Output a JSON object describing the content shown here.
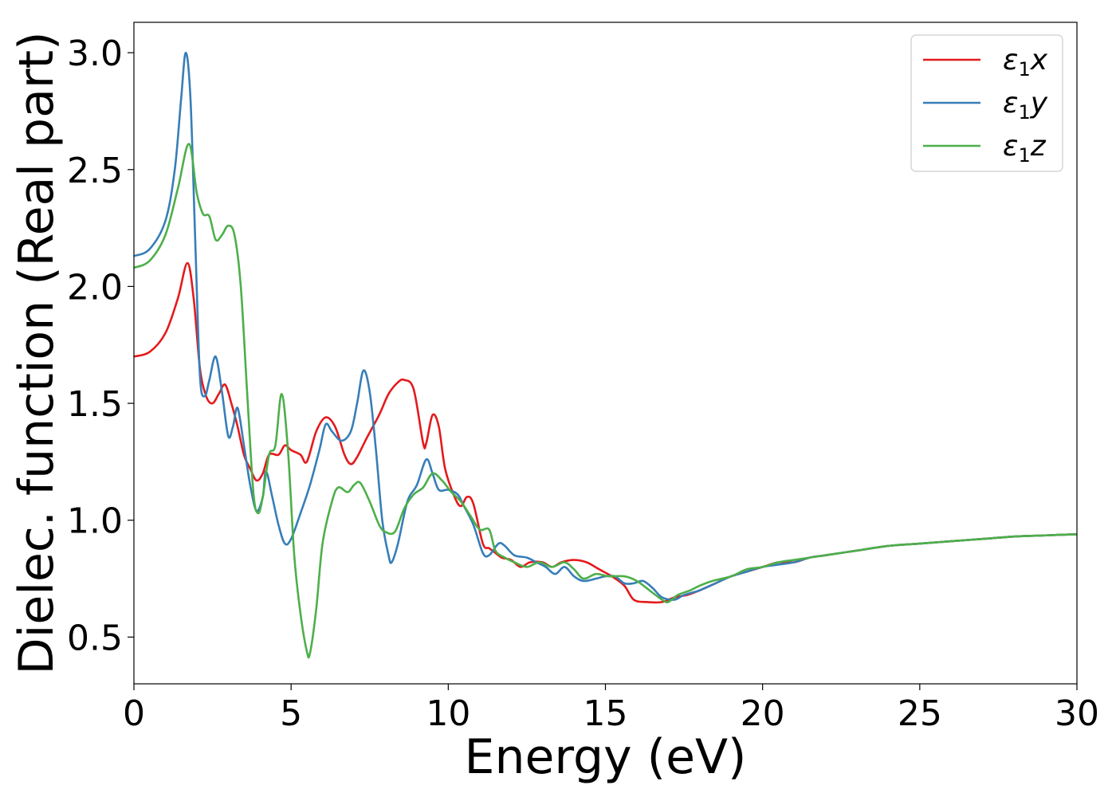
{
  "chart_data": {
    "type": "line",
    "title": "",
    "xlabel": "Energy (eV)",
    "ylabel": "Dielec. function (Real part)",
    "xlim": [
      0,
      30
    ],
    "ylim": [
      0.3,
      3.13
    ],
    "xticks": [
      0,
      5,
      10,
      15,
      20,
      25,
      30
    ],
    "yticks": [
      0.5,
      1.0,
      1.5,
      2.0,
      2.5,
      3.0
    ],
    "grid": false,
    "legend_position": "top-right",
    "series": [
      {
        "name": "ε1x",
        "legend_main": "ε",
        "legend_sub": "1",
        "legend_tail": "x",
        "color": "#e41a1c",
        "points": [
          [
            0,
            1.7
          ],
          [
            0.5,
            1.72
          ],
          [
            1.0,
            1.8
          ],
          [
            1.4,
            1.95
          ],
          [
            1.7,
            2.1
          ],
          [
            1.9,
            1.95
          ],
          [
            2.1,
            1.65
          ],
          [
            2.3,
            1.53
          ],
          [
            2.5,
            1.5
          ],
          [
            2.7,
            1.54
          ],
          [
            2.9,
            1.58
          ],
          [
            3.1,
            1.5
          ],
          [
            3.3,
            1.4
          ],
          [
            3.5,
            1.28
          ],
          [
            3.7,
            1.22
          ],
          [
            3.9,
            1.17
          ],
          [
            4.1,
            1.2
          ],
          [
            4.3,
            1.28
          ],
          [
            4.6,
            1.28
          ],
          [
            4.8,
            1.32
          ],
          [
            5.0,
            1.3
          ],
          [
            5.3,
            1.28
          ],
          [
            5.5,
            1.25
          ],
          [
            5.8,
            1.38
          ],
          [
            6.1,
            1.44
          ],
          [
            6.4,
            1.4
          ],
          [
            6.7,
            1.28
          ],
          [
            6.9,
            1.24
          ],
          [
            7.1,
            1.27
          ],
          [
            7.4,
            1.35
          ],
          [
            7.8,
            1.45
          ],
          [
            8.1,
            1.54
          ],
          [
            8.4,
            1.59
          ],
          [
            8.6,
            1.6
          ],
          [
            8.9,
            1.56
          ],
          [
            9.2,
            1.33
          ],
          [
            9.3,
            1.33
          ],
          [
            9.5,
            1.45
          ],
          [
            9.7,
            1.4
          ],
          [
            9.9,
            1.22
          ],
          [
            10.2,
            1.1
          ],
          [
            10.4,
            1.06
          ],
          [
            10.6,
            1.1
          ],
          [
            10.8,
            1.07
          ],
          [
            11.1,
            0.9
          ],
          [
            11.3,
            0.88
          ],
          [
            11.5,
            0.86
          ],
          [
            11.7,
            0.84
          ],
          [
            12.0,
            0.83
          ],
          [
            12.3,
            0.8
          ],
          [
            12.6,
            0.82
          ],
          [
            13.0,
            0.82
          ],
          [
            13.3,
            0.8
          ],
          [
            13.6,
            0.82
          ],
          [
            14.0,
            0.83
          ],
          [
            14.4,
            0.82
          ],
          [
            14.8,
            0.79
          ],
          [
            15.2,
            0.76
          ],
          [
            15.6,
            0.72
          ],
          [
            15.9,
            0.66
          ],
          [
            16.3,
            0.65
          ],
          [
            16.8,
            0.65
          ],
          [
            17.2,
            0.67
          ],
          [
            17.6,
            0.68
          ],
          [
            18.0,
            0.7
          ],
          [
            18.5,
            0.73
          ],
          [
            19.0,
            0.76
          ],
          [
            19.5,
            0.78
          ],
          [
            20.0,
            0.8
          ],
          [
            20.5,
            0.82
          ],
          [
            21.0,
            0.82
          ],
          [
            21.5,
            0.84
          ],
          [
            22,
            0.85
          ],
          [
            23,
            0.87
          ],
          [
            24,
            0.89
          ],
          [
            25,
            0.9
          ],
          [
            26,
            0.91
          ],
          [
            27,
            0.92
          ],
          [
            28,
            0.93
          ],
          [
            29,
            0.935
          ],
          [
            30,
            0.94
          ]
        ]
      },
      {
        "name": "ε1y",
        "legend_main": "ε",
        "legend_sub": "1",
        "legend_tail": "y",
        "color": "#377eb8",
        "points": [
          [
            0,
            2.13
          ],
          [
            0.5,
            2.16
          ],
          [
            1.0,
            2.28
          ],
          [
            1.3,
            2.5
          ],
          [
            1.5,
            2.8
          ],
          [
            1.65,
            3.0
          ],
          [
            1.8,
            2.8
          ],
          [
            1.95,
            2.2
          ],
          [
            2.1,
            1.62
          ],
          [
            2.25,
            1.53
          ],
          [
            2.4,
            1.6
          ],
          [
            2.6,
            1.7
          ],
          [
            2.8,
            1.55
          ],
          [
            3.0,
            1.36
          ],
          [
            3.15,
            1.4
          ],
          [
            3.3,
            1.48
          ],
          [
            3.5,
            1.32
          ],
          [
            3.7,
            1.15
          ],
          [
            3.9,
            1.04
          ],
          [
            4.1,
            1.1
          ],
          [
            4.2,
            1.21
          ],
          [
            4.4,
            1.1
          ],
          [
            4.6,
            0.98
          ],
          [
            4.8,
            0.9
          ],
          [
            5.0,
            0.92
          ],
          [
            5.3,
            1.03
          ],
          [
            5.6,
            1.15
          ],
          [
            5.9,
            1.3
          ],
          [
            6.1,
            1.41
          ],
          [
            6.3,
            1.38
          ],
          [
            6.6,
            1.34
          ],
          [
            6.9,
            1.38
          ],
          [
            7.1,
            1.5
          ],
          [
            7.3,
            1.64
          ],
          [
            7.5,
            1.55
          ],
          [
            7.7,
            1.3
          ],
          [
            7.9,
            1.0
          ],
          [
            8.1,
            0.85
          ],
          [
            8.2,
            0.82
          ],
          [
            8.4,
            0.9
          ],
          [
            8.7,
            1.08
          ],
          [
            9.0,
            1.15
          ],
          [
            9.3,
            1.26
          ],
          [
            9.5,
            1.2
          ],
          [
            9.7,
            1.13
          ],
          [
            10.0,
            1.13
          ],
          [
            10.3,
            1.11
          ],
          [
            10.5,
            1.06
          ],
          [
            10.8,
            0.98
          ],
          [
            11.1,
            0.86
          ],
          [
            11.3,
            0.85
          ],
          [
            11.6,
            0.9
          ],
          [
            11.8,
            0.89
          ],
          [
            12.1,
            0.85
          ],
          [
            12.5,
            0.84
          ],
          [
            12.8,
            0.82
          ],
          [
            13.1,
            0.8
          ],
          [
            13.4,
            0.77
          ],
          [
            13.7,
            0.8
          ],
          [
            14.0,
            0.76
          ],
          [
            14.3,
            0.74
          ],
          [
            14.7,
            0.75
          ],
          [
            15.0,
            0.76
          ],
          [
            15.3,
            0.76
          ],
          [
            15.6,
            0.73
          ],
          [
            15.9,
            0.73
          ],
          [
            16.2,
            0.74
          ],
          [
            16.5,
            0.71
          ],
          [
            16.8,
            0.67
          ],
          [
            17.2,
            0.66
          ],
          [
            17.5,
            0.68
          ],
          [
            18.0,
            0.7
          ],
          [
            18.5,
            0.73
          ],
          [
            19.0,
            0.76
          ],
          [
            19.5,
            0.78
          ],
          [
            20.0,
            0.8
          ],
          [
            20.5,
            0.81
          ],
          [
            21.0,
            0.82
          ],
          [
            21.5,
            0.84
          ],
          [
            22,
            0.85
          ],
          [
            23,
            0.87
          ],
          [
            24,
            0.89
          ],
          [
            25,
            0.9
          ],
          [
            26,
            0.91
          ],
          [
            27,
            0.92
          ],
          [
            28,
            0.93
          ],
          [
            29,
            0.935
          ],
          [
            30,
            0.94
          ]
        ]
      },
      {
        "name": "ε1z",
        "legend_main": "ε",
        "legend_sub": "1",
        "legend_tail": "z",
        "color": "#4daf4a",
        "points": [
          [
            0,
            2.08
          ],
          [
            0.5,
            2.11
          ],
          [
            1.0,
            2.22
          ],
          [
            1.4,
            2.42
          ],
          [
            1.75,
            2.61
          ],
          [
            2.0,
            2.4
          ],
          [
            2.2,
            2.31
          ],
          [
            2.4,
            2.3
          ],
          [
            2.6,
            2.2
          ],
          [
            2.8,
            2.22
          ],
          [
            3.0,
            2.26
          ],
          [
            3.2,
            2.22
          ],
          [
            3.4,
            2.0
          ],
          [
            3.6,
            1.55
          ],
          [
            3.8,
            1.12
          ],
          [
            3.95,
            1.03
          ],
          [
            4.1,
            1.1
          ],
          [
            4.3,
            1.28
          ],
          [
            4.5,
            1.32
          ],
          [
            4.7,
            1.54
          ],
          [
            4.9,
            1.3
          ],
          [
            5.1,
            0.85
          ],
          [
            5.3,
            0.6
          ],
          [
            5.5,
            0.44
          ],
          [
            5.6,
            0.43
          ],
          [
            5.8,
            0.62
          ],
          [
            6.0,
            0.9
          ],
          [
            6.3,
            1.08
          ],
          [
            6.5,
            1.14
          ],
          [
            6.8,
            1.12
          ],
          [
            7.0,
            1.15
          ],
          [
            7.2,
            1.16
          ],
          [
            7.5,
            1.08
          ],
          [
            7.8,
            0.98
          ],
          [
            8.0,
            0.95
          ],
          [
            8.3,
            0.95
          ],
          [
            8.6,
            1.05
          ],
          [
            8.9,
            1.11
          ],
          [
            9.2,
            1.14
          ],
          [
            9.5,
            1.2
          ],
          [
            9.8,
            1.17
          ],
          [
            10.1,
            1.12
          ],
          [
            10.4,
            1.08
          ],
          [
            10.7,
            1.02
          ],
          [
            11.0,
            0.96
          ],
          [
            11.3,
            0.96
          ],
          [
            11.5,
            0.87
          ],
          [
            11.8,
            0.84
          ],
          [
            12.1,
            0.82
          ],
          [
            12.5,
            0.8
          ],
          [
            12.9,
            0.82
          ],
          [
            13.3,
            0.8
          ],
          [
            13.7,
            0.82
          ],
          [
            14.0,
            0.79
          ],
          [
            14.3,
            0.75
          ],
          [
            14.7,
            0.77
          ],
          [
            15.1,
            0.76
          ],
          [
            15.6,
            0.76
          ],
          [
            16.0,
            0.74
          ],
          [
            16.4,
            0.7
          ],
          [
            16.8,
            0.66
          ],
          [
            17.0,
            0.65
          ],
          [
            17.3,
            0.68
          ],
          [
            17.7,
            0.7
          ],
          [
            18.0,
            0.72
          ],
          [
            18.4,
            0.74
          ],
          [
            19.0,
            0.76
          ],
          [
            19.5,
            0.79
          ],
          [
            20.0,
            0.8
          ],
          [
            20.5,
            0.82
          ],
          [
            21.0,
            0.83
          ],
          [
            21.5,
            0.84
          ],
          [
            22,
            0.85
          ],
          [
            23,
            0.87
          ],
          [
            24,
            0.89
          ],
          [
            25,
            0.9
          ],
          [
            26,
            0.91
          ],
          [
            27,
            0.92
          ],
          [
            28,
            0.93
          ],
          [
            29,
            0.935
          ],
          [
            30,
            0.94
          ]
        ]
      }
    ]
  }
}
